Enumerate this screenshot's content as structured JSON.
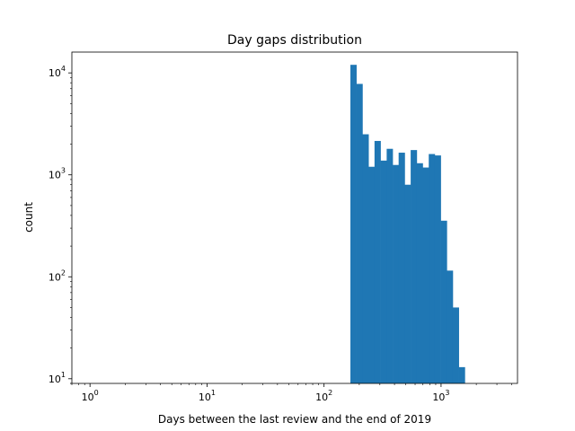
{
  "chart_data": {
    "type": "bar",
    "title": "Day gaps distribution",
    "xlabel": "Days between the last review and the end of 2019",
    "ylabel": "count",
    "xscale": "log",
    "yscale": "log",
    "xlim": [
      0.7,
      4500
    ],
    "ylim": [
      9,
      16000
    ],
    "grid": false,
    "x_ticks": [
      {
        "value": 1,
        "base": "10",
        "exp": "0"
      },
      {
        "value": 10,
        "base": "10",
        "exp": "1"
      },
      {
        "value": 100,
        "base": "10",
        "exp": "2"
      },
      {
        "value": 1000,
        "base": "10",
        "exp": "3"
      }
    ],
    "y_ticks": [
      {
        "value": 10,
        "base": "10",
        "exp": "1"
      },
      {
        "value": 100,
        "base": "10",
        "exp": "2"
      },
      {
        "value": 1000,
        "base": "10",
        "exp": "3"
      },
      {
        "value": 10000,
        "base": "10",
        "exp": "4"
      }
    ],
    "bar_color": "#1f77b4",
    "bins": [
      {
        "x0": 168,
        "x1": 189,
        "count": 12000
      },
      {
        "x0": 189,
        "x1": 213,
        "count": 7800
      },
      {
        "x0": 213,
        "x1": 240,
        "count": 2500
      },
      {
        "x0": 240,
        "x1": 270,
        "count": 1200
      },
      {
        "x0": 270,
        "x1": 304,
        "count": 2150
      },
      {
        "x0": 304,
        "x1": 343,
        "count": 1380
      },
      {
        "x0": 343,
        "x1": 386,
        "count": 1800
      },
      {
        "x0": 386,
        "x1": 434,
        "count": 1250
      },
      {
        "x0": 434,
        "x1": 489,
        "count": 1650
      },
      {
        "x0": 489,
        "x1": 550,
        "count": 800
      },
      {
        "x0": 550,
        "x1": 620,
        "count": 1750
      },
      {
        "x0": 620,
        "x1": 697,
        "count": 1300
      },
      {
        "x0": 697,
        "x1": 785,
        "count": 1180
      },
      {
        "x0": 785,
        "x1": 884,
        "count": 1600
      },
      {
        "x0": 884,
        "x1": 994,
        "count": 1550
      },
      {
        "x0": 994,
        "x1": 1120,
        "count": 355
      },
      {
        "x0": 1120,
        "x1": 1260,
        "count": 115
      },
      {
        "x0": 1260,
        "x1": 1418,
        "count": 50
      },
      {
        "x0": 1418,
        "x1": 1596,
        "count": 13
      }
    ]
  }
}
